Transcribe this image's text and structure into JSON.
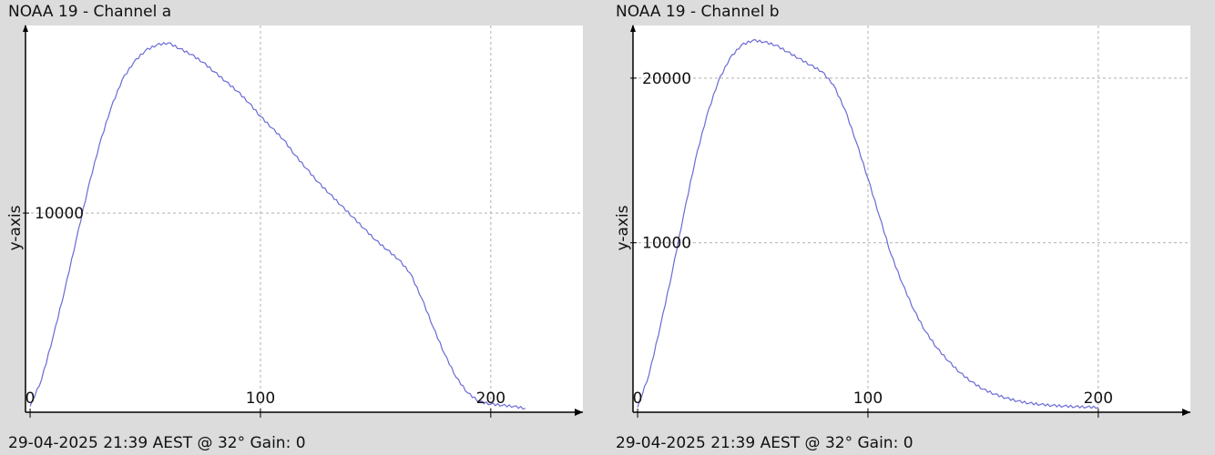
{
  "colors": {
    "background": "#dcdcdc",
    "plot_bg": "#ffffff",
    "series": "#6a6ad6",
    "grid": "#b0b0b0",
    "axis": "#000000"
  },
  "chart_data": [
    {
      "type": "line",
      "title": "NOAA 19 - Channel a",
      "footer": "29-04-2025 21:39 AEST @ 32° Gain: 0",
      "ylabel": "y-axis",
      "xlabel": "",
      "xlim": [
        -2,
        240
      ],
      "ylim": [
        -300,
        19700
      ],
      "x_ticks": [
        0,
        100,
        200
      ],
      "y_ticks": [
        10000
      ],
      "grid": true,
      "series": [
        {
          "x": [
            0,
            5,
            10,
            15,
            20,
            25,
            30,
            35,
            40,
            45,
            50,
            55,
            60,
            65,
            70,
            75,
            80,
            85,
            90,
            95,
            100,
            105,
            110,
            115,
            120,
            125,
            130,
            135,
            140,
            145,
            150,
            155,
            160,
            165,
            170,
            175,
            180,
            185,
            190,
            195,
            200,
            205,
            210,
            215
          ],
          "y": [
            0,
            1400,
            3600,
            6000,
            8600,
            11200,
            13500,
            15400,
            16900,
            17800,
            18400,
            18700,
            18800,
            18500,
            18200,
            17800,
            17300,
            16800,
            16300,
            15700,
            15000,
            14400,
            13800,
            13000,
            12300,
            11600,
            11000,
            10400,
            9800,
            9200,
            8600,
            8100,
            7600,
            6900,
            5600,
            4100,
            2700,
            1500,
            700,
            250,
            120,
            60,
            0,
            -100
          ]
        }
      ]
    },
    {
      "type": "line",
      "title": "NOAA 19 - Channel b",
      "footer": "29-04-2025 21:39 AEST @ 32° Gain: 0",
      "ylabel": "y-axis",
      "xlabel": "",
      "xlim": [
        -2,
        240
      ],
      "ylim": [
        -300,
        23200
      ],
      "x_ticks": [
        0,
        100,
        200
      ],
      "y_ticks": [
        10000,
        20000
      ],
      "grid": true,
      "series": [
        {
          "x": [
            0,
            5,
            10,
            15,
            20,
            25,
            30,
            35,
            40,
            45,
            50,
            55,
            60,
            65,
            70,
            75,
            80,
            85,
            90,
            95,
            100,
            105,
            110,
            115,
            120,
            125,
            130,
            135,
            140,
            145,
            150,
            155,
            160,
            165,
            170,
            175,
            180,
            185,
            190,
            195,
            200
          ],
          "y": [
            0,
            2000,
            5000,
            8200,
            11700,
            15000,
            17700,
            19800,
            21200,
            22000,
            22300,
            22200,
            22000,
            21600,
            21200,
            20800,
            20400,
            19600,
            18100,
            16100,
            13900,
            11600,
            9300,
            7500,
            5900,
            4600,
            3600,
            2800,
            2100,
            1550,
            1100,
            800,
            560,
            380,
            250,
            170,
            110,
            70,
            40,
            15,
            0
          ]
        }
      ]
    }
  ]
}
